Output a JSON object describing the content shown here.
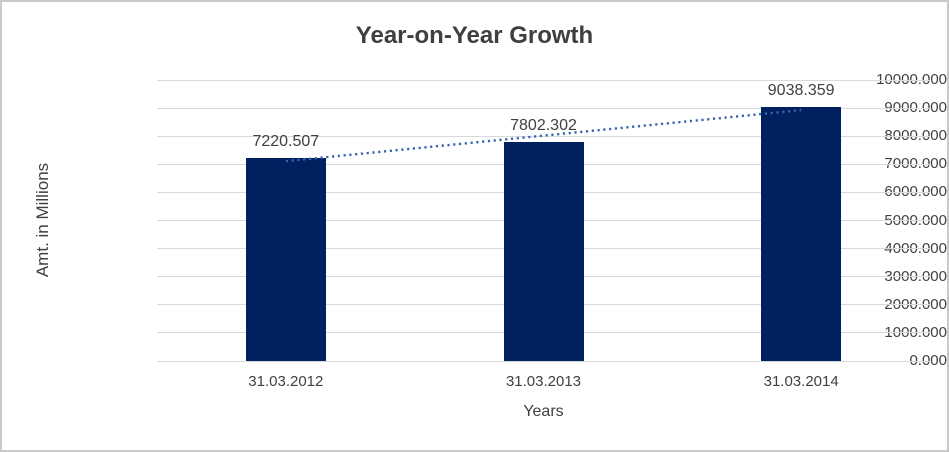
{
  "frame": {
    "background": "#FFFFFF",
    "border_color": "#C9C9C9"
  },
  "chart_data": {
    "type": "bar",
    "title": "Year-on-Year Growth",
    "xlabel": "Years",
    "ylabel": "Amt. in Millions",
    "categories": [
      "31.03.2012",
      "31.03.2013",
      "31.03.2014"
    ],
    "series": [
      {
        "values": [
          7220.507,
          7802.302,
          9038.359
        ],
        "data_labels": [
          "7220.507",
          "7802.302",
          "9038.359"
        ],
        "color": "#002060"
      }
    ],
    "ylim": [
      0,
      10000
    ],
    "ytick_step": 1000,
    "ytick_labels": [
      "0.000",
      "1000.000",
      "2000.000",
      "3000.000",
      "4000.000",
      "5000.000",
      "6000.000",
      "7000.000",
      "8000.000",
      "9000.000",
      "10000.000"
    ],
    "grid": true,
    "gridline_color": "#D9D9D9",
    "legend": "none",
    "text_color": "#404040",
    "title_color": "#3F3F3F",
    "trendline": {
      "type": "linear",
      "style": "dotted",
      "color": "#3764AF",
      "start_category_index": 0,
      "end_category_index": 2,
      "start_value": 7111.5,
      "end_value": 8929.3
    }
  }
}
